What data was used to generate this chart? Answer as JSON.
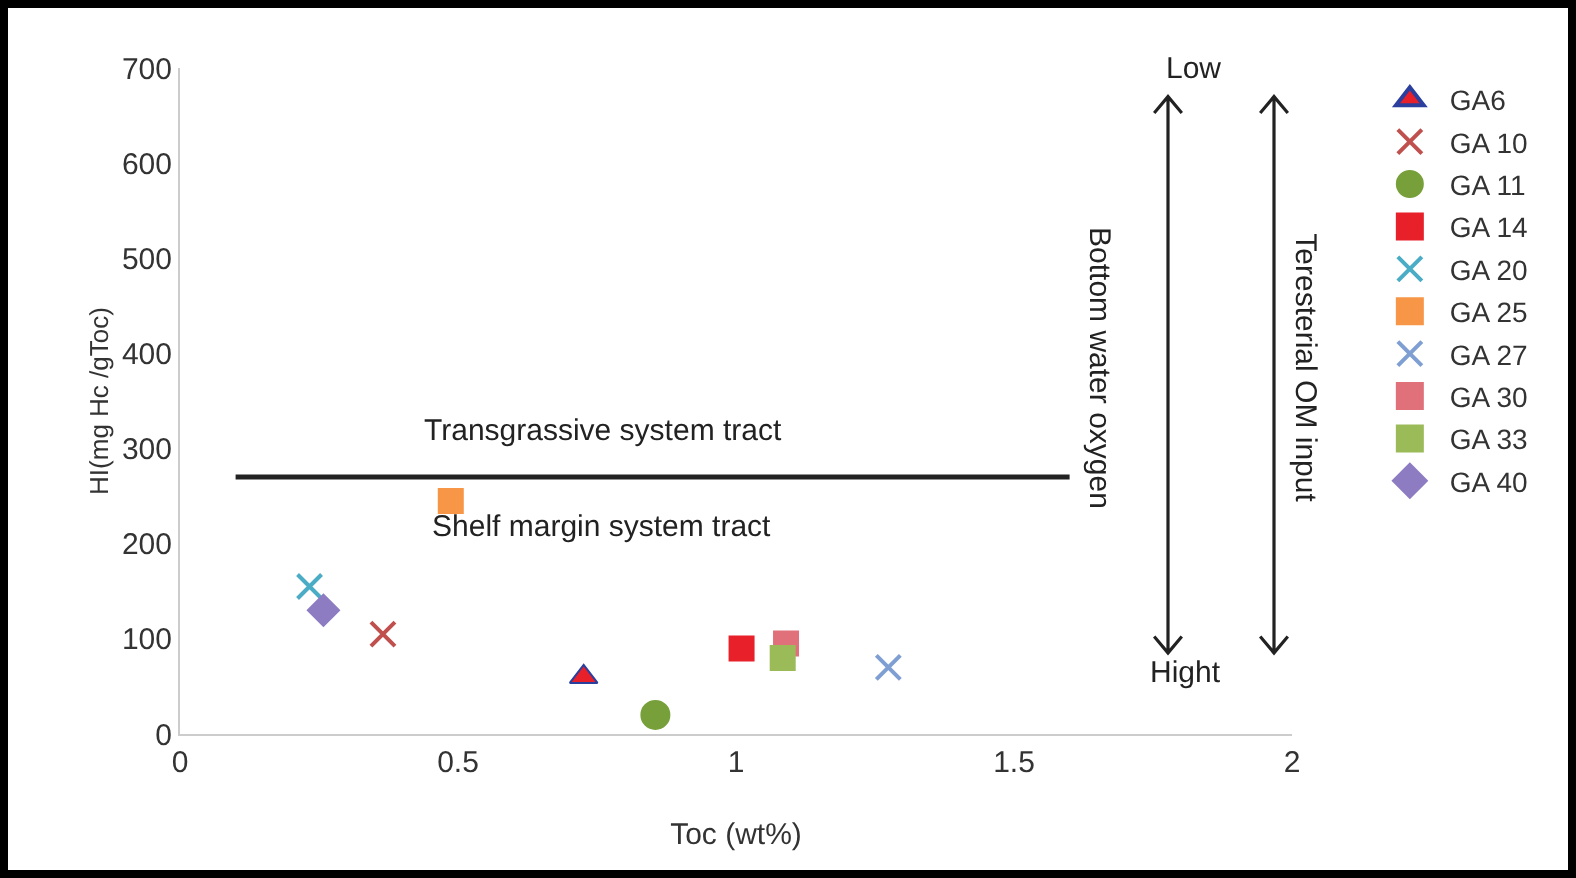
{
  "chart_data": {
    "type": "scatter",
    "xlabel": "Toc (wt%)",
    "ylabel": "HI(mg Hc /gToc)",
    "xlim": [
      0,
      2
    ],
    "xticks": [
      0,
      0.5,
      1,
      1.5,
      2
    ],
    "ylim": [
      0,
      700
    ],
    "yticks": [
      0,
      100,
      200,
      300,
      400,
      500,
      600,
      700
    ],
    "grid": false,
    "legend": "right",
    "series": [
      {
        "name": "GA6",
        "color": "#e8202a",
        "marker": "triangle",
        "x": [
          0.726
        ],
        "values": [
          60
        ]
      },
      {
        "name": "GA 10",
        "color": "#c0504d",
        "marker": "cross",
        "x": [
          0.365
        ],
        "values": [
          105
        ]
      },
      {
        "name": "GA 11",
        "color": "#77a03a",
        "marker": "circle",
        "x": [
          0.855
        ],
        "values": [
          20
        ]
      },
      {
        "name": "GA 14",
        "color": "#e8202a",
        "marker": "square",
        "x": [
          1.01
        ],
        "values": [
          90
        ]
      },
      {
        "name": "GA 20",
        "color": "#4bacc6",
        "marker": "cross",
        "x": [
          0.233
        ],
        "values": [
          155
        ]
      },
      {
        "name": "GA 25",
        "color": "#f79646",
        "marker": "square",
        "x": [
          0.487
        ],
        "values": [
          245
        ]
      },
      {
        "name": "GA 27",
        "color": "#7f9fd3",
        "marker": "cross",
        "x": [
          1.274
        ],
        "values": [
          70
        ]
      },
      {
        "name": "GA 30",
        "color": "#e0707a",
        "marker": "square",
        "x": [
          1.09
        ],
        "values": [
          95
        ]
      },
      {
        "name": "GA 33",
        "color": "#9bbb59",
        "marker": "square",
        "x": [
          1.084
        ],
        "values": [
          80
        ]
      },
      {
        "name": "GA 40",
        "color": "#8e7cc3",
        "marker": "diamond",
        "x": [
          0.258
        ],
        "values": [
          130
        ]
      },
      {
        "type": "line",
        "color": "#222222",
        "x": [
          0.1,
          1.6
        ],
        "values": [
          270,
          270
        ]
      }
    ],
    "annotations": [
      "Transgrassive system tract",
      "Shelf margin system tract",
      "Low",
      "Hight",
      "Bottom water oxygen",
      "Teresterial OM input"
    ]
  }
}
